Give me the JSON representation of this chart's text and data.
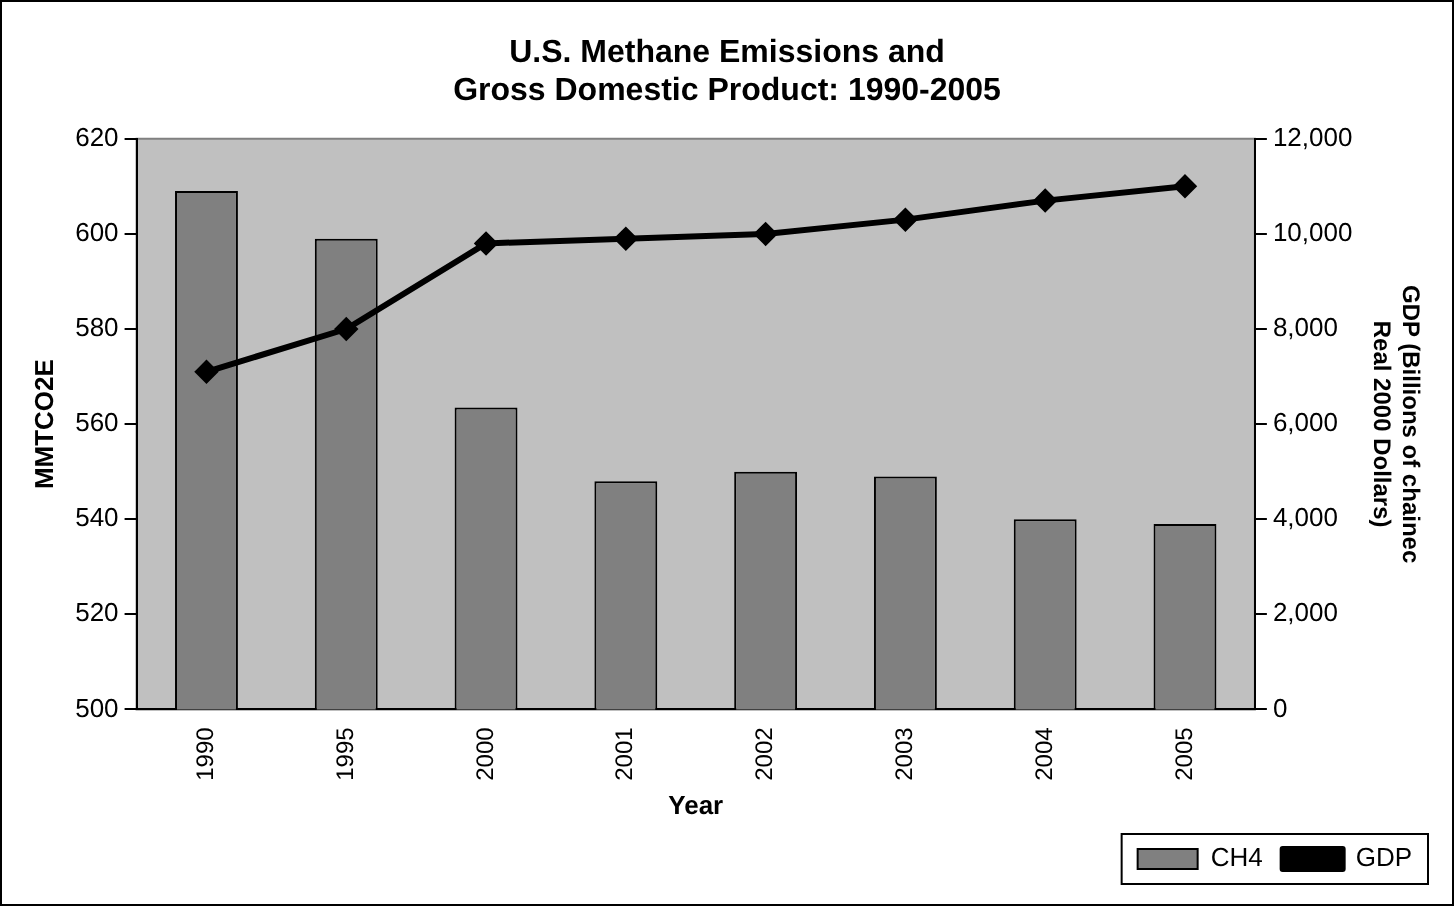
{
  "chart_data": {
    "type": "bar",
    "title": "U.S. Methane Emissions and\nGross Domestic Product: 1990-2005",
    "xlabel": "Year",
    "ylabel": "MMTCO2E",
    "y2label": "GDP (Billions of chainec\nReal 2000 Dollars)",
    "categories": [
      "1990",
      "1995",
      "2000",
      "2001",
      "2002",
      "2003",
      "2004",
      "2005"
    ],
    "series": [
      {
        "name": "CH4",
        "color": "#808080",
        "values": [
          609,
          599,
          563.5,
          548,
          550,
          549,
          540,
          539
        ]
      },
      {
        "name": "GDP",
        "type": "line",
        "axis": "y2",
        "color": "#000000",
        "marker": "diamond",
        "values": [
          7100,
          8000,
          9800,
          9900,
          10000,
          10300,
          10700,
          11000
        ]
      }
    ],
    "ylim": [
      500,
      620
    ],
    "yticks": [
      500,
      520,
      540,
      560,
      580,
      600,
      620
    ],
    "y2lim": [
      0,
      12000
    ],
    "y2ticks": [
      0,
      {
        "value": 2000,
        "label": "2,000"
      },
      {
        "value": 4000,
        "label": "4,000"
      },
      {
        "value": 6000,
        "label": "6,000"
      },
      {
        "value": 8000,
        "label": "8,000"
      },
      {
        "value": 10000,
        "label": "10,000"
      },
      {
        "value": 12000,
        "label": "12,000"
      }
    ],
    "grid": false,
    "legend": "bottom right"
  }
}
